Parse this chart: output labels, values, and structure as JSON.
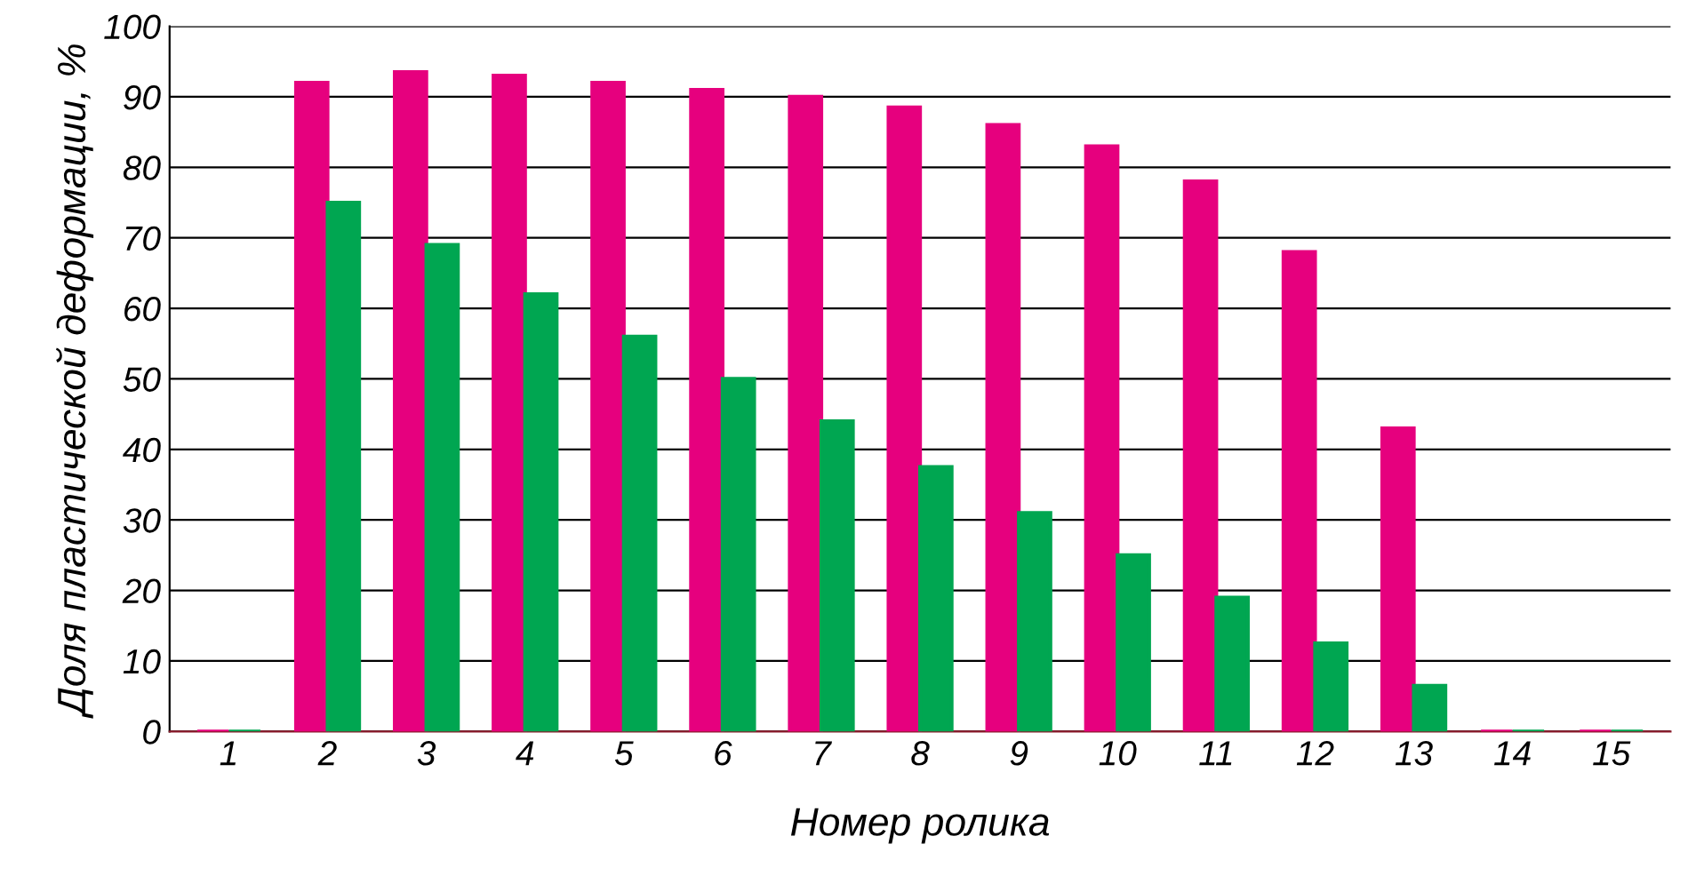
{
  "chart_data": {
    "type": "bar",
    "xlabel": "Номер ролика",
    "ylabel": "Доля пластической деформации, %",
    "categories": [
      "1",
      "2",
      "3",
      "4",
      "5",
      "6",
      "7",
      "8",
      "9",
      "10",
      "11",
      "12",
      "13",
      "14",
      "15"
    ],
    "series": [
      {
        "color": "#e6007e",
        "values": [
          0,
          92,
          93.5,
          93,
          92,
          91,
          90,
          88.5,
          86,
          83,
          78,
          68,
          43,
          0,
          0
        ]
      },
      {
        "color": "#00a651",
        "values": [
          0,
          75,
          69,
          62,
          56,
          50,
          44,
          37.5,
          31,
          25,
          19,
          12.5,
          6.5,
          0,
          0
        ]
      }
    ],
    "ylim": [
      0,
      100
    ],
    "yticks": [
      0,
      10,
      20,
      30,
      40,
      50,
      60,
      70,
      80,
      90,
      100
    ],
    "grid": "y"
  }
}
